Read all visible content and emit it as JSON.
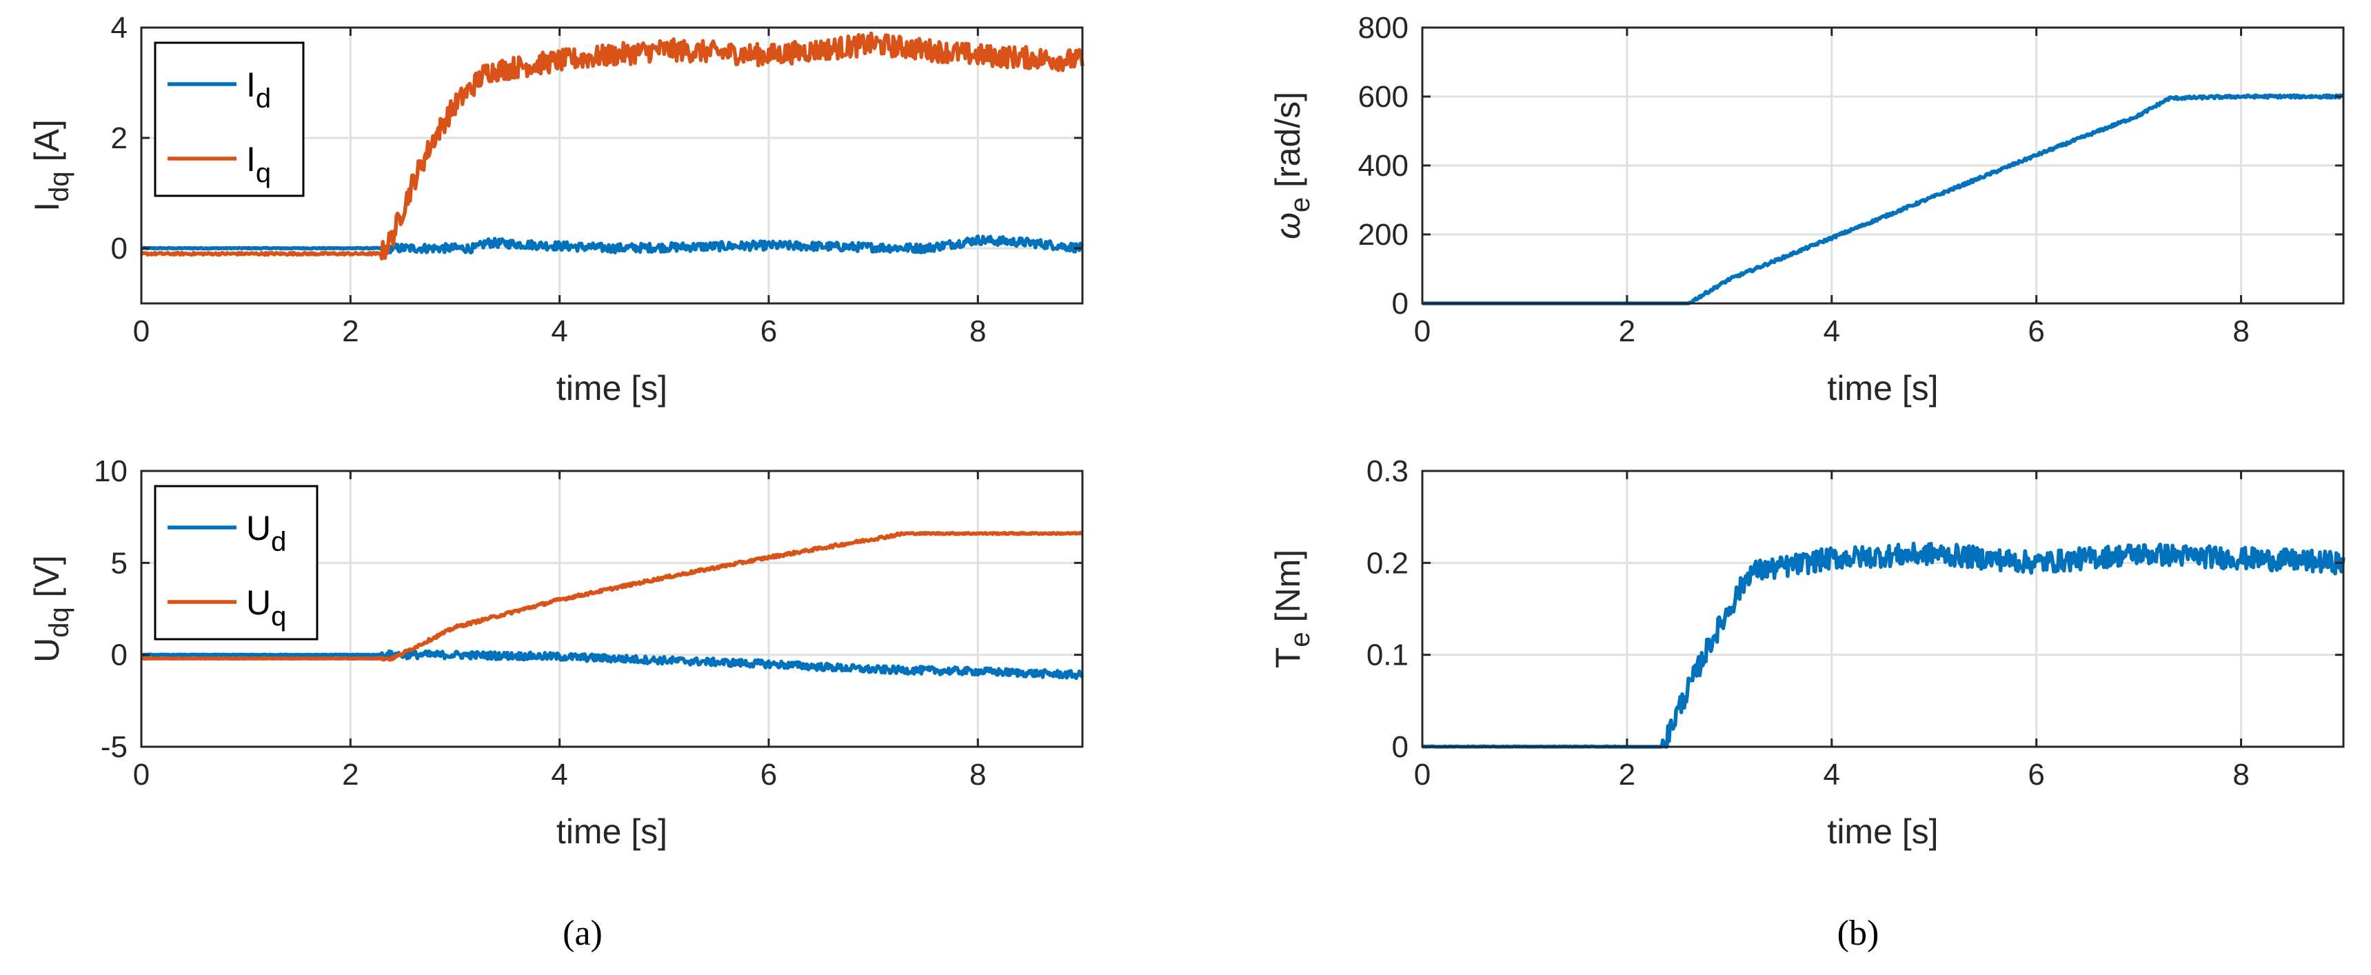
{
  "figure_labels": {
    "a": "(a)",
    "b": "(b)"
  },
  "colors": {
    "blue": "#0072BD",
    "orange": "#D95319",
    "grid": "#E0E0E0",
    "axis": "#262626"
  },
  "chart_data": [
    {
      "id": "idq",
      "type": "line",
      "xlabel": "time [s]",
      "ylabel": {
        "main": "I",
        "sub": "dq",
        "unit": " [A]"
      },
      "xlim": [
        0,
        9
      ],
      "ylim": [
        -1,
        4
      ],
      "xticks": [
        0,
        2,
        4,
        6,
        8
      ],
      "xtick_labels": [
        "0",
        "2",
        "4",
        "6",
        "8"
      ],
      "yticks": [
        0,
        2,
        4
      ],
      "ytick_labels": [
        "0",
        "2",
        "4"
      ],
      "grid": true,
      "legend_position": "top-left",
      "series": [
        {
          "name": "I",
          "sub": "d",
          "color": "#0072BD",
          "x": [
            0,
            2.3,
            3.2,
            3.3,
            4.5,
            6.0,
            7.5,
            8.0,
            8.5,
            9.0
          ],
          "y": [
            0,
            0,
            0.0,
            0.1,
            0.0,
            0.05,
            0.0,
            0.15,
            0.1,
            0.0
          ],
          "noise": 0.08
        },
        {
          "name": "I",
          "sub": "q",
          "color": "#D95319",
          "x": [
            0,
            2.3,
            2.4,
            2.6,
            2.8,
            3.0,
            3.3,
            4.0,
            5.0,
            6.0,
            7.0,
            8.0,
            9.0
          ],
          "y": [
            -0.1,
            -0.1,
            0.2,
            1.2,
            2.0,
            2.6,
            3.2,
            3.4,
            3.6,
            3.5,
            3.7,
            3.5,
            3.4
          ],
          "noise": 0.2
        }
      ]
    },
    {
      "id": "omega",
      "type": "line",
      "xlabel": "time [s]",
      "ylabel": {
        "main": "ω",
        "sub": "e",
        "unit": " [rad/s]"
      },
      "xlim": [
        0,
        9
      ],
      "ylim": [
        0,
        800
      ],
      "xticks": [
        0,
        2,
        4,
        6,
        8
      ],
      "xtick_labels": [
        "0",
        "2",
        "4",
        "6",
        "8"
      ],
      "yticks": [
        0,
        200,
        400,
        600,
        800
      ],
      "ytick_labels": [
        "0",
        "200",
        "400",
        "600",
        "800"
      ],
      "grid": true,
      "series": [
        {
          "name": "",
          "color": "#0072BD",
          "x": [
            0,
            2.6,
            3.0,
            4.0,
            5.0,
            6.0,
            7.0,
            7.3,
            8.0,
            9.0
          ],
          "y": [
            0,
            0,
            70,
            190,
            310,
            430,
            545,
            595,
            600,
            600
          ],
          "noise": 4
        }
      ]
    },
    {
      "id": "udq",
      "type": "line",
      "xlabel": "time [s]",
      "ylabel": {
        "main": "U",
        "sub": "dq",
        "unit": " [V]"
      },
      "xlim": [
        0,
        9
      ],
      "ylim": [
        -5,
        10
      ],
      "xticks": [
        0,
        2,
        4,
        6,
        8
      ],
      "xtick_labels": [
        "0",
        "2",
        "4",
        "6",
        "8"
      ],
      "yticks": [
        -5,
        0,
        5,
        10
      ],
      "ytick_labels": [
        "-5",
        "0",
        "5",
        "10"
      ],
      "grid": true,
      "legend_position": "top-left",
      "series": [
        {
          "name": "U",
          "sub": "d",
          "color": "#0072BD",
          "x": [
            0,
            2.4,
            3.0,
            4.0,
            5.0,
            6.0,
            7.0,
            8.0,
            9.0
          ],
          "y": [
            0,
            0,
            0,
            -0.1,
            -0.3,
            -0.5,
            -0.8,
            -0.9,
            -1.1
          ],
          "noise": 0.2
        },
        {
          "name": "U",
          "sub": "q",
          "color": "#D95319",
          "x": [
            0,
            2.4,
            3.0,
            4.0,
            5.0,
            6.0,
            7.0,
            7.3,
            8.0,
            9.0
          ],
          "y": [
            -0.2,
            -0.2,
            1.5,
            3.0,
            4.2,
            5.3,
            6.3,
            6.6,
            6.6,
            6.6
          ],
          "noise": 0.08
        }
      ]
    },
    {
      "id": "te",
      "type": "line",
      "xlabel": "time [s]",
      "ylabel": {
        "main": "T",
        "sub": "e",
        "unit": " [Nm]"
      },
      "xlim": [
        0,
        9
      ],
      "ylim": [
        0,
        0.3
      ],
      "xticks": [
        0,
        2,
        4,
        6,
        8
      ],
      "xtick_labels": [
        "0",
        "2",
        "4",
        "6",
        "8"
      ],
      "yticks": [
        0,
        0.1,
        0.2,
        0.3
      ],
      "ytick_labels": [
        "0",
        "0.1",
        "0.2",
        "0.3"
      ],
      "grid": true,
      "series": [
        {
          "name": "",
          "color": "#0072BD",
          "x": [
            0,
            1.9,
            2.35,
            2.5,
            2.8,
            3.0,
            3.2,
            3.5,
            4.0,
            5.0,
            6.0,
            7.0,
            8.0,
            9.0
          ],
          "y": [
            0,
            0,
            -0.002,
            0.04,
            0.11,
            0.15,
            0.19,
            0.195,
            0.205,
            0.21,
            0.2,
            0.21,
            0.205,
            0.2
          ],
          "noise": 0.012
        }
      ]
    }
  ]
}
